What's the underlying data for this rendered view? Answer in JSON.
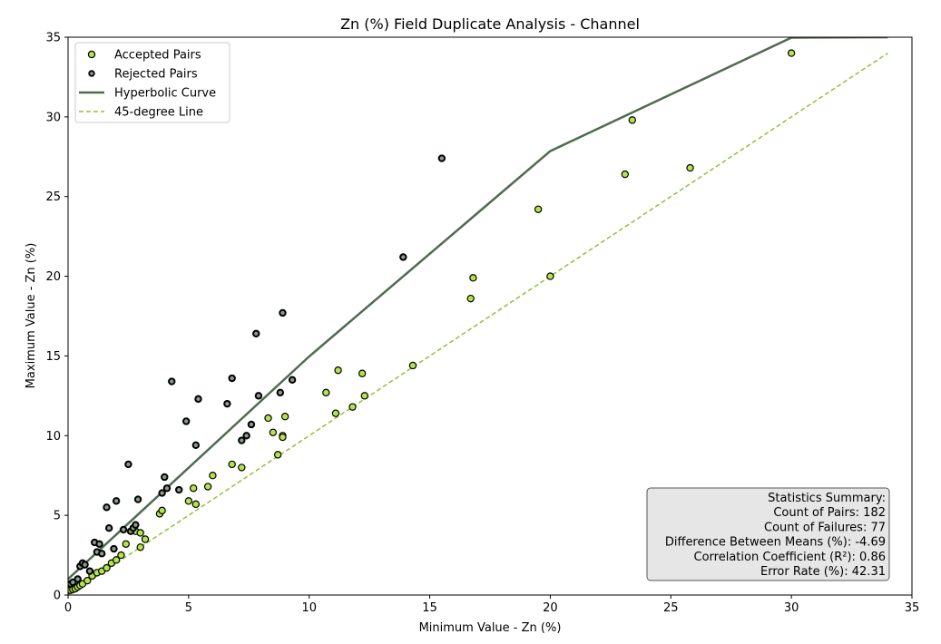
{
  "chart_data": {
    "type": "scatter",
    "title": "Zn (%) Field Duplicate Analysis - Channel",
    "xlabel": "Minimum Value - Zn (%)",
    "ylabel": "Maximum Value - Zn (%)",
    "xlim": [
      0,
      35
    ],
    "ylim": [
      0,
      35
    ],
    "xticks": [
      "0",
      "5",
      "10",
      "15",
      "20",
      "25",
      "30",
      "35"
    ],
    "yticks": [
      "0",
      "5",
      "10",
      "15",
      "20",
      "25",
      "30",
      "35"
    ],
    "grid": false,
    "legend_position": "top-left",
    "legend": [
      {
        "label": "Accepted Pairs",
        "kind": "accepted"
      },
      {
        "label": "Rejected Pairs",
        "kind": "rejected"
      },
      {
        "label": "Hyperbolic Curve",
        "kind": "curve"
      },
      {
        "label": "45-degree Line",
        "kind": "diagonal"
      }
    ],
    "colors": {
      "accepted": "#b5e34a",
      "rejected": "#8a9c8a",
      "curve": "#4f6b4f",
      "diagonal": "#93c03a",
      "edge": "#000000",
      "stats_bg": "#e6e6e6"
    },
    "curve": {
      "x": [
        0,
        10,
        20,
        30,
        34
      ],
      "y": [
        1.0,
        14.97,
        27.85,
        34.97,
        35
      ]
    },
    "diagonal": {
      "x": [
        0,
        34
      ],
      "y": [
        0,
        34
      ]
    },
    "series": [
      {
        "name": "Accepted Pairs",
        "points": [
          [
            0.1,
            0.3
          ],
          [
            0.2,
            0.35
          ],
          [
            0.3,
            0.4
          ],
          [
            0.4,
            0.5
          ],
          [
            0.5,
            0.6
          ],
          [
            0.6,
            0.7
          ],
          [
            0.8,
            0.9
          ],
          [
            1.0,
            1.2
          ],
          [
            1.2,
            1.4
          ],
          [
            1.4,
            1.5
          ],
          [
            1.6,
            1.7
          ],
          [
            1.8,
            2.0
          ],
          [
            2.0,
            2.2
          ],
          [
            2.2,
            2.5
          ],
          [
            2.4,
            3.2
          ],
          [
            2.8,
            4.0
          ],
          [
            3.0,
            3.9
          ],
          [
            3.0,
            3.0
          ],
          [
            3.2,
            3.5
          ],
          [
            3.8,
            5.1
          ],
          [
            3.9,
            5.3
          ],
          [
            5.0,
            5.9
          ],
          [
            5.2,
            6.7
          ],
          [
            5.3,
            5.7
          ],
          [
            5.8,
            6.8
          ],
          [
            6.0,
            7.5
          ],
          [
            6.8,
            8.2
          ],
          [
            7.2,
            8.0
          ],
          [
            8.3,
            11.1
          ],
          [
            8.5,
            10.2
          ],
          [
            8.7,
            8.8
          ],
          [
            8.9,
            10.0
          ],
          [
            8.9,
            9.9
          ],
          [
            9.0,
            11.2
          ],
          [
            10.7,
            12.7
          ],
          [
            11.1,
            11.4
          ],
          [
            11.2,
            14.1
          ],
          [
            11.8,
            11.8
          ],
          [
            12.2,
            13.9
          ],
          [
            12.3,
            12.5
          ],
          [
            14.3,
            14.4
          ],
          [
            16.7,
            18.6
          ],
          [
            16.8,
            19.9
          ],
          [
            19.5,
            24.2
          ],
          [
            20.0,
            20.0
          ],
          [
            23.1,
            26.4
          ],
          [
            23.4,
            29.8
          ],
          [
            25.8,
            26.8
          ],
          [
            30.0,
            34.0
          ]
        ]
      },
      {
        "name": "Rejected Pairs",
        "points": [
          [
            0.1,
            0.7
          ],
          [
            0.2,
            0.8
          ],
          [
            0.4,
            1.0
          ],
          [
            0.5,
            1.8
          ],
          [
            0.6,
            2.0
          ],
          [
            0.7,
            1.9
          ],
          [
            0.9,
            1.5
          ],
          [
            1.1,
            3.3
          ],
          [
            1.2,
            2.7
          ],
          [
            1.3,
            3.2
          ],
          [
            1.4,
            2.6
          ],
          [
            1.6,
            5.5
          ],
          [
            1.7,
            4.2
          ],
          [
            1.9,
            2.9
          ],
          [
            2.0,
            5.9
          ],
          [
            2.3,
            4.1
          ],
          [
            2.5,
            8.2
          ],
          [
            2.6,
            4.0
          ],
          [
            2.7,
            4.2
          ],
          [
            2.8,
            4.4
          ],
          [
            2.9,
            6.0
          ],
          [
            3.9,
            6.4
          ],
          [
            4.0,
            7.4
          ],
          [
            4.1,
            6.7
          ],
          [
            4.3,
            13.4
          ],
          [
            4.6,
            6.6
          ],
          [
            4.9,
            10.9
          ],
          [
            5.3,
            9.4
          ],
          [
            5.4,
            12.3
          ],
          [
            6.6,
            12.0
          ],
          [
            6.8,
            13.6
          ],
          [
            7.2,
            9.7
          ],
          [
            7.4,
            10.0
          ],
          [
            7.6,
            10.7
          ],
          [
            7.8,
            16.4
          ],
          [
            7.9,
            12.5
          ],
          [
            8.8,
            12.7
          ],
          [
            8.9,
            17.7
          ],
          [
            9.3,
            13.5
          ],
          [
            13.9,
            21.2
          ],
          [
            15.5,
            27.4
          ]
        ]
      }
    ],
    "stats": {
      "heading": "Statistics Summary:",
      "lines": [
        "Count of Pairs: 182",
        "Count of Failures: 77",
        "Difference Between Means (%): -4.69",
        "Correlation Coefficient (R²): 0.86",
        "Error Rate (%): 42.31"
      ]
    }
  }
}
